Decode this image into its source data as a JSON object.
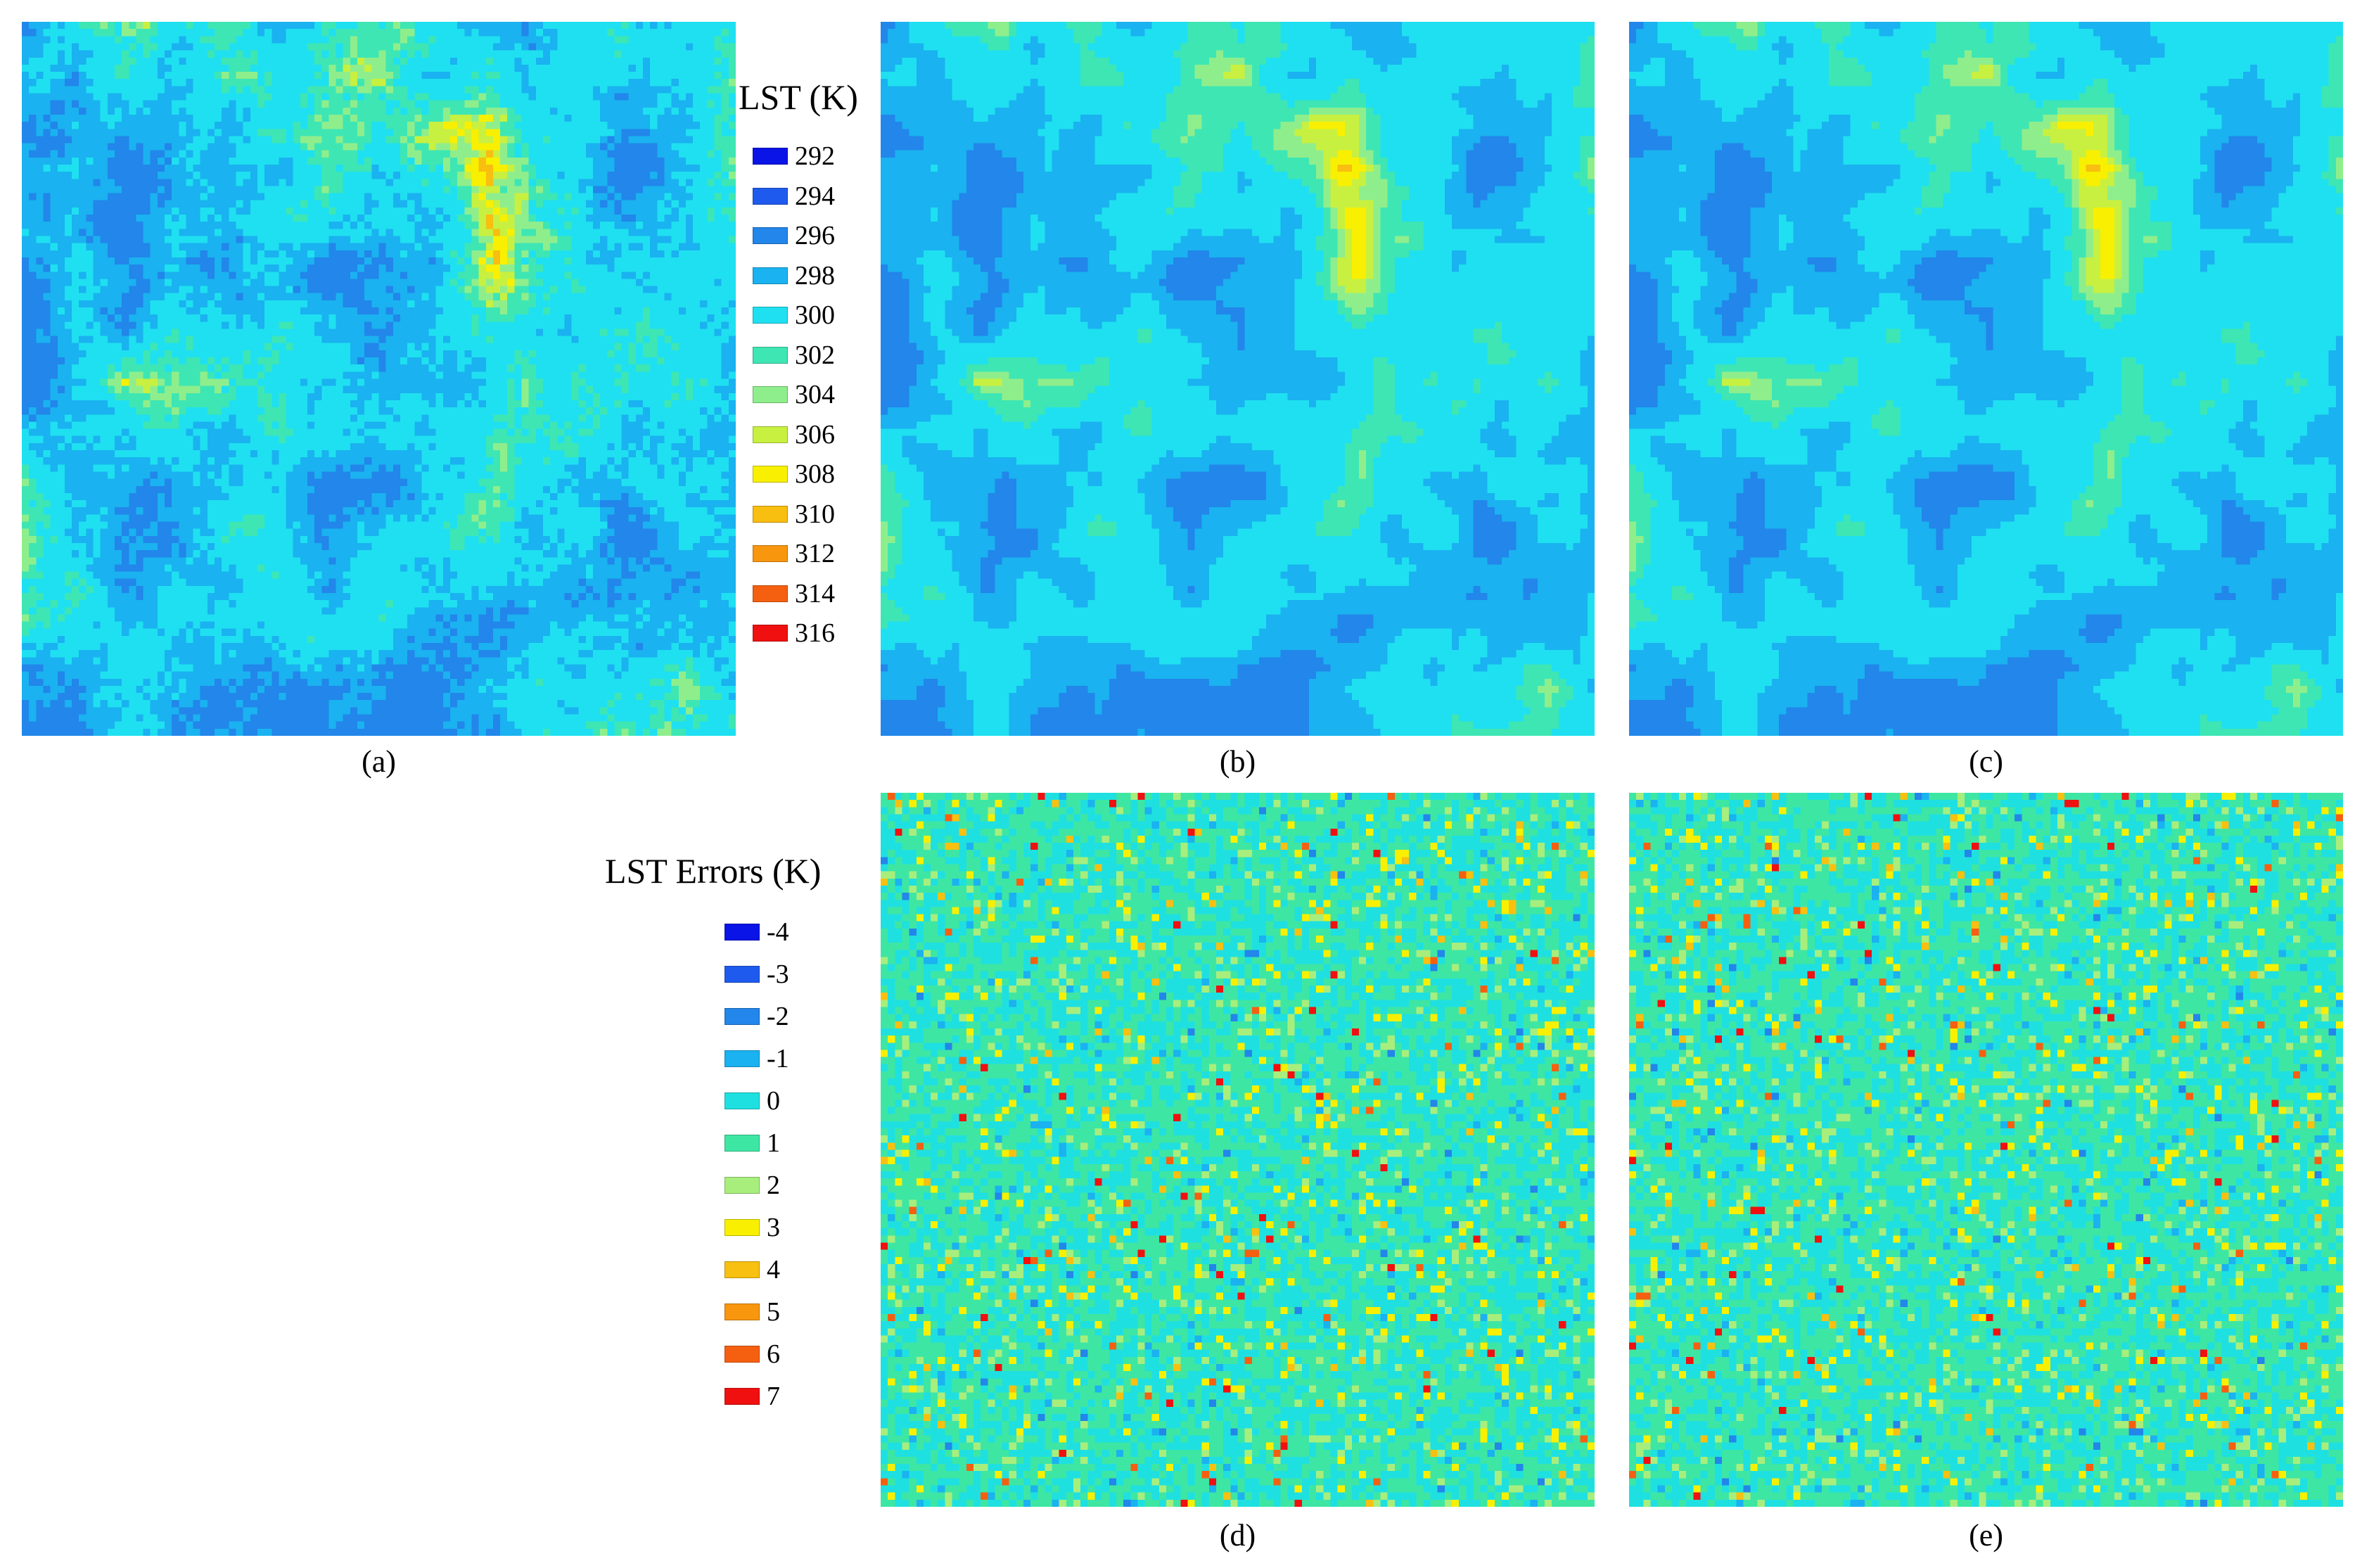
{
  "panels": {
    "a": {
      "caption": "(a)"
    },
    "b": {
      "caption": "(b)"
    },
    "c": {
      "caption": "(c)"
    },
    "d": {
      "caption": "(d)"
    },
    "e": {
      "caption": "(e)"
    }
  },
  "legend_lst": {
    "title": "LST (K)",
    "items": [
      {
        "label": "292",
        "color": "#0a14e6"
      },
      {
        "label": "294",
        "color": "#1e5aee"
      },
      {
        "label": "296",
        "color": "#2286ea"
      },
      {
        "label": "298",
        "color": "#1ab2f0"
      },
      {
        "label": "300",
        "color": "#1fe0f0"
      },
      {
        "label": "302",
        "color": "#3ee6b4"
      },
      {
        "label": "304",
        "color": "#8fee8c"
      },
      {
        "label": "306",
        "color": "#c8f040"
      },
      {
        "label": "308",
        "color": "#f8f000"
      },
      {
        "label": "310",
        "color": "#f8be10"
      },
      {
        "label": "312",
        "color": "#f8960e"
      },
      {
        "label": "314",
        "color": "#f56010"
      },
      {
        "label": "316",
        "color": "#f01010"
      }
    ]
  },
  "legend_err": {
    "title": "LST Errors (K)",
    "items": [
      {
        "label": "-4",
        "color": "#0a14e6"
      },
      {
        "label": "-3",
        "color": "#1e5aee"
      },
      {
        "label": "-2",
        "color": "#2286ea"
      },
      {
        "label": "-1",
        "color": "#1ab2f0"
      },
      {
        "label": "0",
        "color": "#1fe0e0"
      },
      {
        "label": "1",
        "color": "#3ee6a4"
      },
      {
        "label": "2",
        "color": "#a8ee7c"
      },
      {
        "label": "3",
        "color": "#f8f000"
      },
      {
        "label": "4",
        "color": "#f8c010"
      },
      {
        "label": "5",
        "color": "#f8960e"
      },
      {
        "label": "6",
        "color": "#f56010"
      },
      {
        "label": "7",
        "color": "#f01010"
      }
    ]
  }
}
